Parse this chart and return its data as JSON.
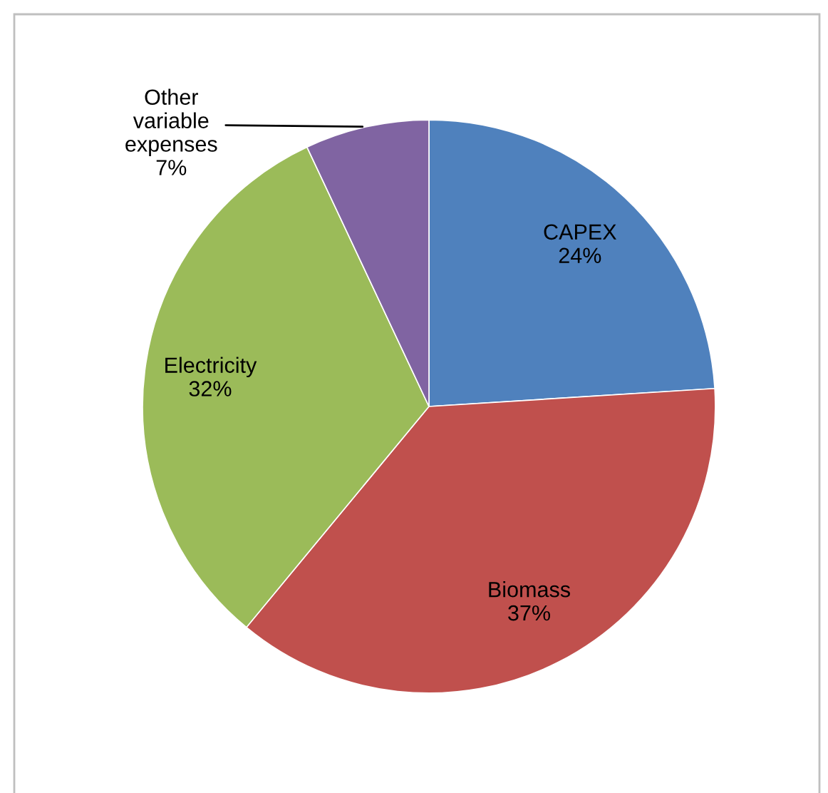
{
  "chart_data": {
    "type": "pie",
    "categories": [
      "CAPEX",
      "Biomass",
      "Electricity",
      "Other variable expenses"
    ],
    "values": [
      24,
      37,
      32,
      7
    ],
    "colors": [
      "#4f81bd",
      "#c0504d",
      "#9bbb59",
      "#8064a2"
    ],
    "value_labels": [
      "24%",
      "37%",
      "32%",
      "7%"
    ],
    "legend": false
  }
}
